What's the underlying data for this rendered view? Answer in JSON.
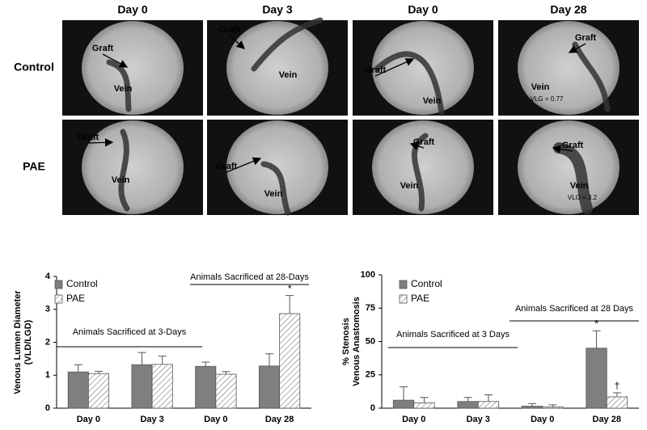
{
  "image_panel": {
    "columns": [
      "Day 0",
      "Day 3",
      "Day 0",
      "Day 28"
    ],
    "rows": [
      "Control",
      "PAE"
    ],
    "cells": [
      [
        {
          "graft": "Graft",
          "vein": "Vein"
        },
        {
          "graft": "Graft",
          "vein": "Vein"
        },
        {
          "graft": "Graft",
          "vein": "Vein"
        },
        {
          "graft": "Graft",
          "vein": "Vein",
          "vlg": "VLG = 0.77"
        }
      ],
      [
        {
          "graft": "Graft",
          "vein": "Vein"
        },
        {
          "graft": "Graft",
          "vein": "Vein"
        },
        {
          "graft": "Graft",
          "vein": "Vein"
        },
        {
          "graft": "Graft",
          "vein": "Vein",
          "vlg": "VLG = 3.2"
        }
      ]
    ]
  },
  "chart_data": [
    {
      "type": "bar",
      "y_label": [
        "Venous Lumen Diameter",
        "(VLD/LGD)"
      ],
      "categories": [
        "Day 0",
        "Day 3",
        "Day 0",
        "Day 28"
      ],
      "series": [
        {
          "name": "Control",
          "color": "#7f7f7f",
          "hatch": false,
          "values": [
            1.1,
            1.32,
            1.27,
            1.28
          ],
          "errors": [
            0.22,
            0.37,
            0.13,
            0.37
          ]
        },
        {
          "name": "PAE",
          "color": "#ffffff",
          "hatch": true,
          "values": [
            1.05,
            1.33,
            1.03,
            2.87
          ],
          "errors": [
            0.07,
            0.25,
            0.08,
            0.55
          ]
        }
      ],
      "ylim": [
        0,
        4
      ],
      "yticks": [
        0,
        1,
        2,
        3,
        4
      ],
      "groups": [
        {
          "text": "Animals Sacrificed at 3-Days",
          "categories": [
            0,
            1
          ]
        },
        {
          "text": "Animals Sacrificed at 28-Days",
          "categories": [
            2,
            3
          ]
        }
      ],
      "annotations": [
        {
          "text": "*",
          "series": 1,
          "category": 3
        }
      ]
    },
    {
      "type": "bar",
      "y_label": [
        "% Stenosis",
        "Venous Anastomosis"
      ],
      "categories": [
        "Day 0",
        "Day 3",
        "Day 0",
        "Day 28"
      ],
      "series": [
        {
          "name": "Control",
          "color": "#7f7f7f",
          "hatch": false,
          "values": [
            6,
            5,
            1.5,
            45
          ],
          "errors": [
            10,
            3,
            2,
            13
          ]
        },
        {
          "name": "PAE",
          "color": "#ffffff",
          "hatch": true,
          "values": [
            4,
            5,
            1,
            8.5
          ],
          "errors": [
            4,
            5,
            1.5,
            3
          ]
        }
      ],
      "ylim": [
        0,
        100
      ],
      "yticks": [
        0,
        25,
        50,
        75,
        100
      ],
      "groups": [
        {
          "text": "Animals Sacrificed at 3 Days",
          "categories": [
            0,
            1
          ]
        },
        {
          "text": "Animals Sacrificed at 28 Days",
          "categories": [
            2,
            3
          ]
        }
      ],
      "annotations": [
        {
          "text": "*",
          "series": 0,
          "category": 3
        },
        {
          "text": "†",
          "series": 1,
          "category": 3
        }
      ]
    }
  ]
}
